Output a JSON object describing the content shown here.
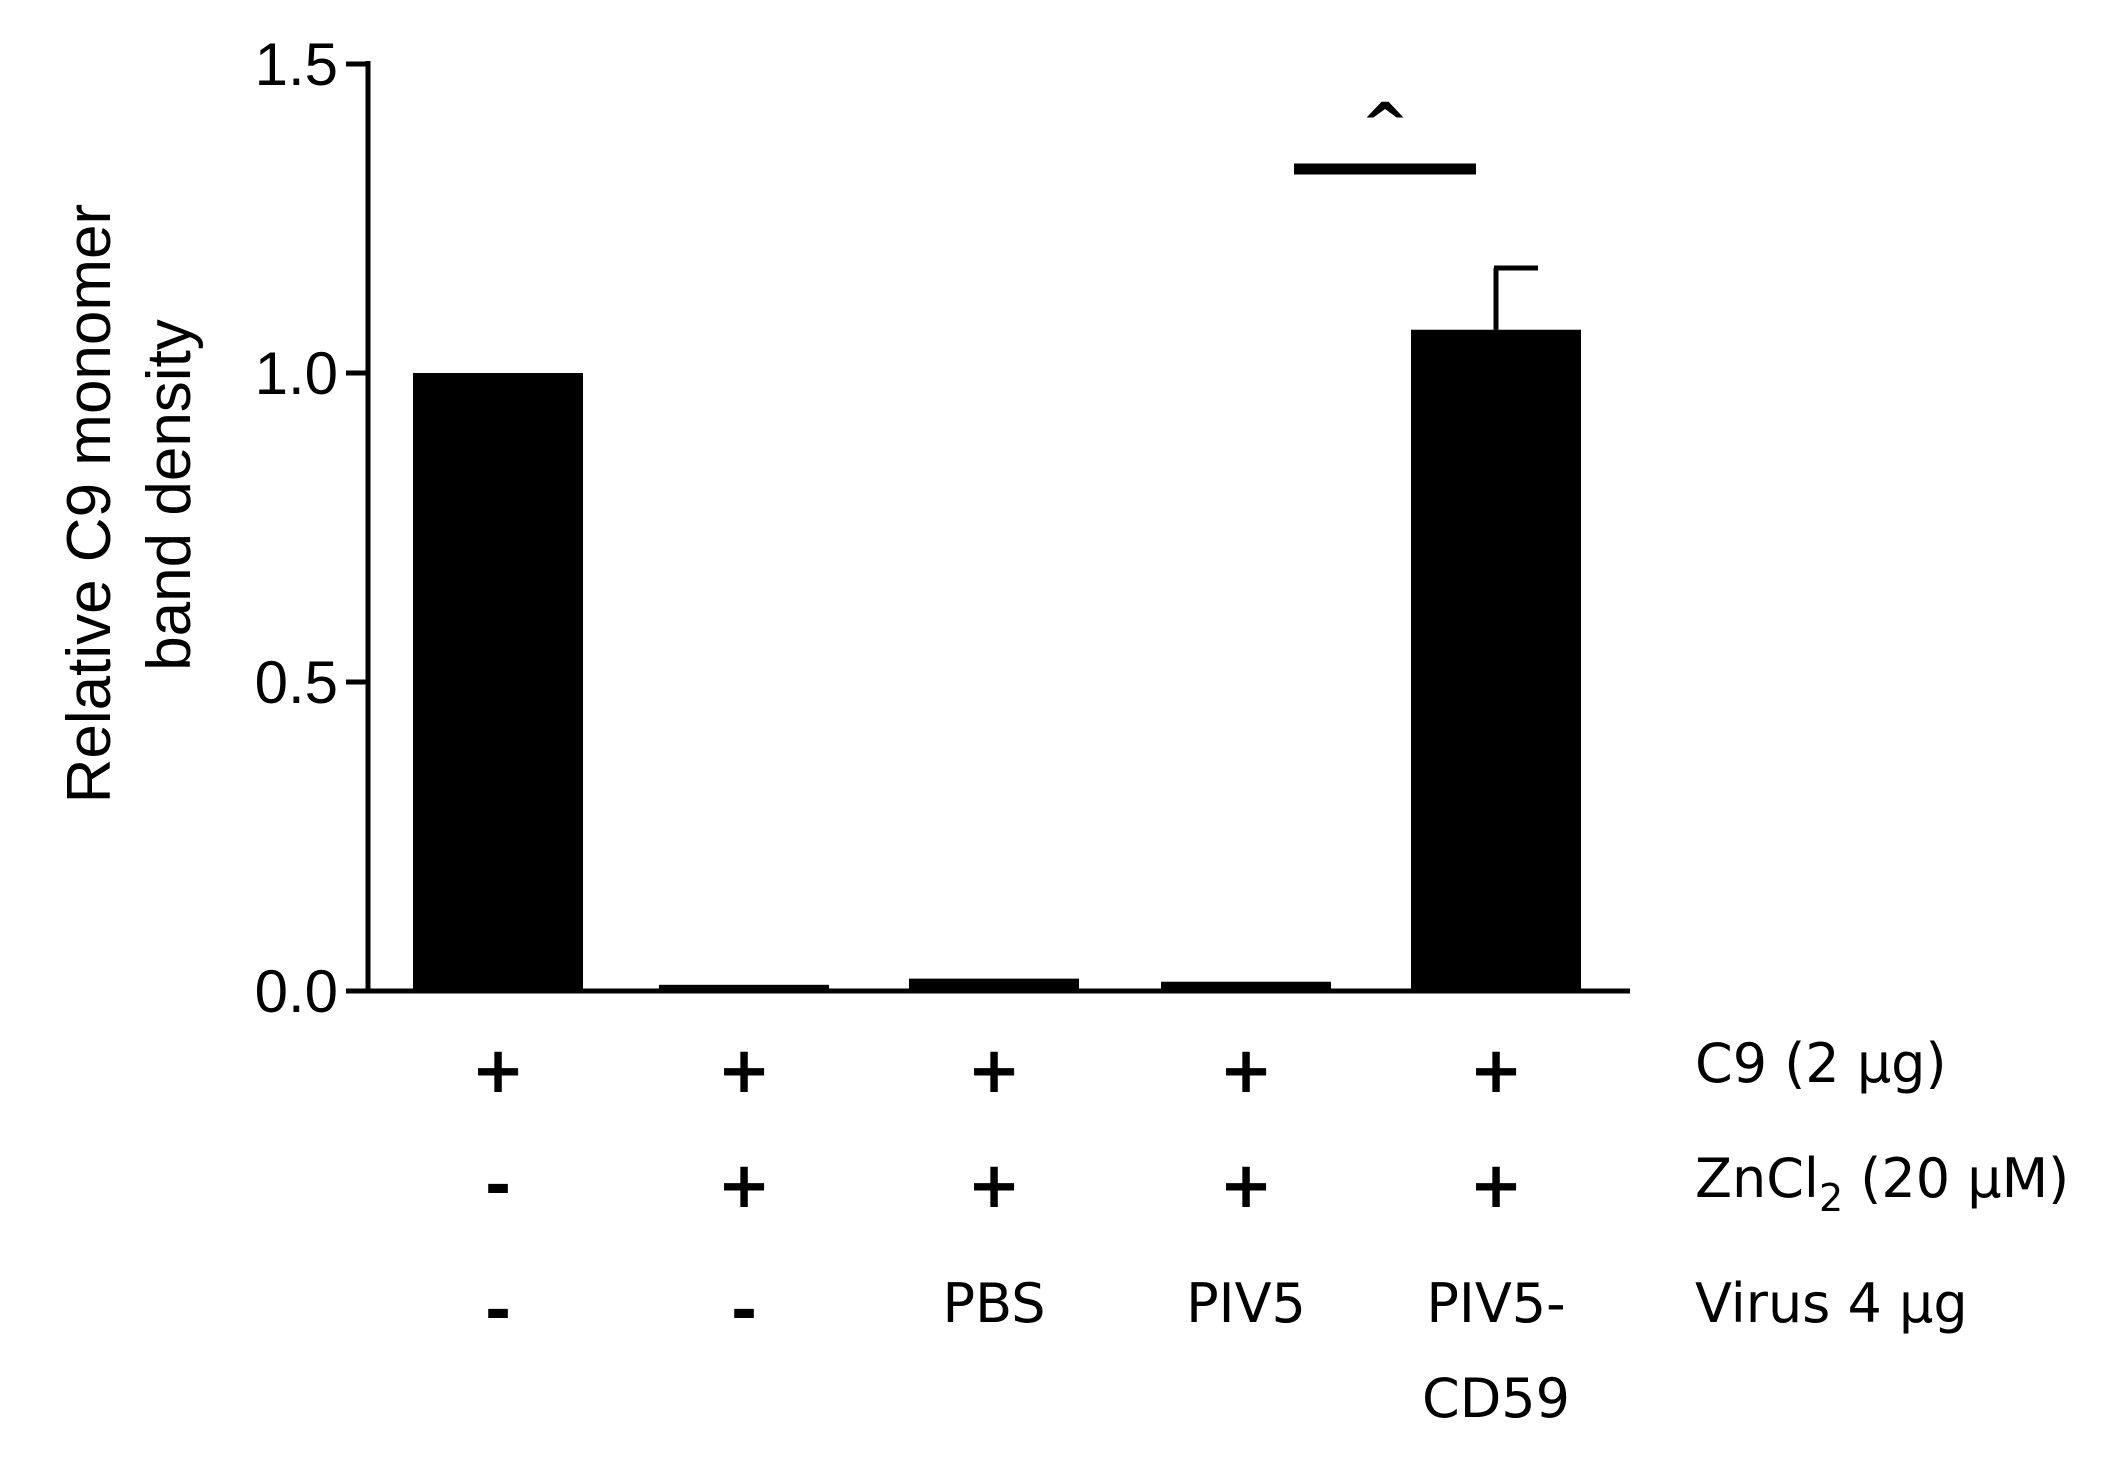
{
  "chart_data": {
    "type": "bar",
    "ylabel_lines": [
      "Relative C9 monomer",
      "band density"
    ],
    "ylim": [
      0,
      1.5
    ],
    "yticks": [
      "0.0",
      "0.5",
      "1.0",
      "1.5"
    ],
    "ytick_values": [
      0,
      0.5,
      1.0,
      1.5
    ],
    "values": [
      1.0,
      0.01,
      0.02,
      0.015,
      1.07
    ],
    "errors": [
      0,
      0,
      0,
      0,
      0.1
    ],
    "bar_color": "#000000",
    "significance": {
      "label": "^",
      "from_bar": 3,
      "to_bar": 4,
      "value": 1.33
    },
    "conditions": [
      {
        "label": "C9 (2 μg)",
        "values": [
          "+",
          "+",
          "+",
          "+",
          "+"
        ]
      },
      {
        "label_main": "ZnCl",
        "label_sub": "2",
        "label_rest": " (20 μM)",
        "values": [
          "-",
          "+",
          "+",
          "+",
          "+"
        ]
      },
      {
        "label": "Virus 4 μg",
        "values": [
          "-",
          "-",
          "PBS",
          "PIV5",
          "PIV5-"
        ],
        "values_line2": [
          "",
          "",
          "",
          "",
          "CD59"
        ]
      }
    ]
  }
}
